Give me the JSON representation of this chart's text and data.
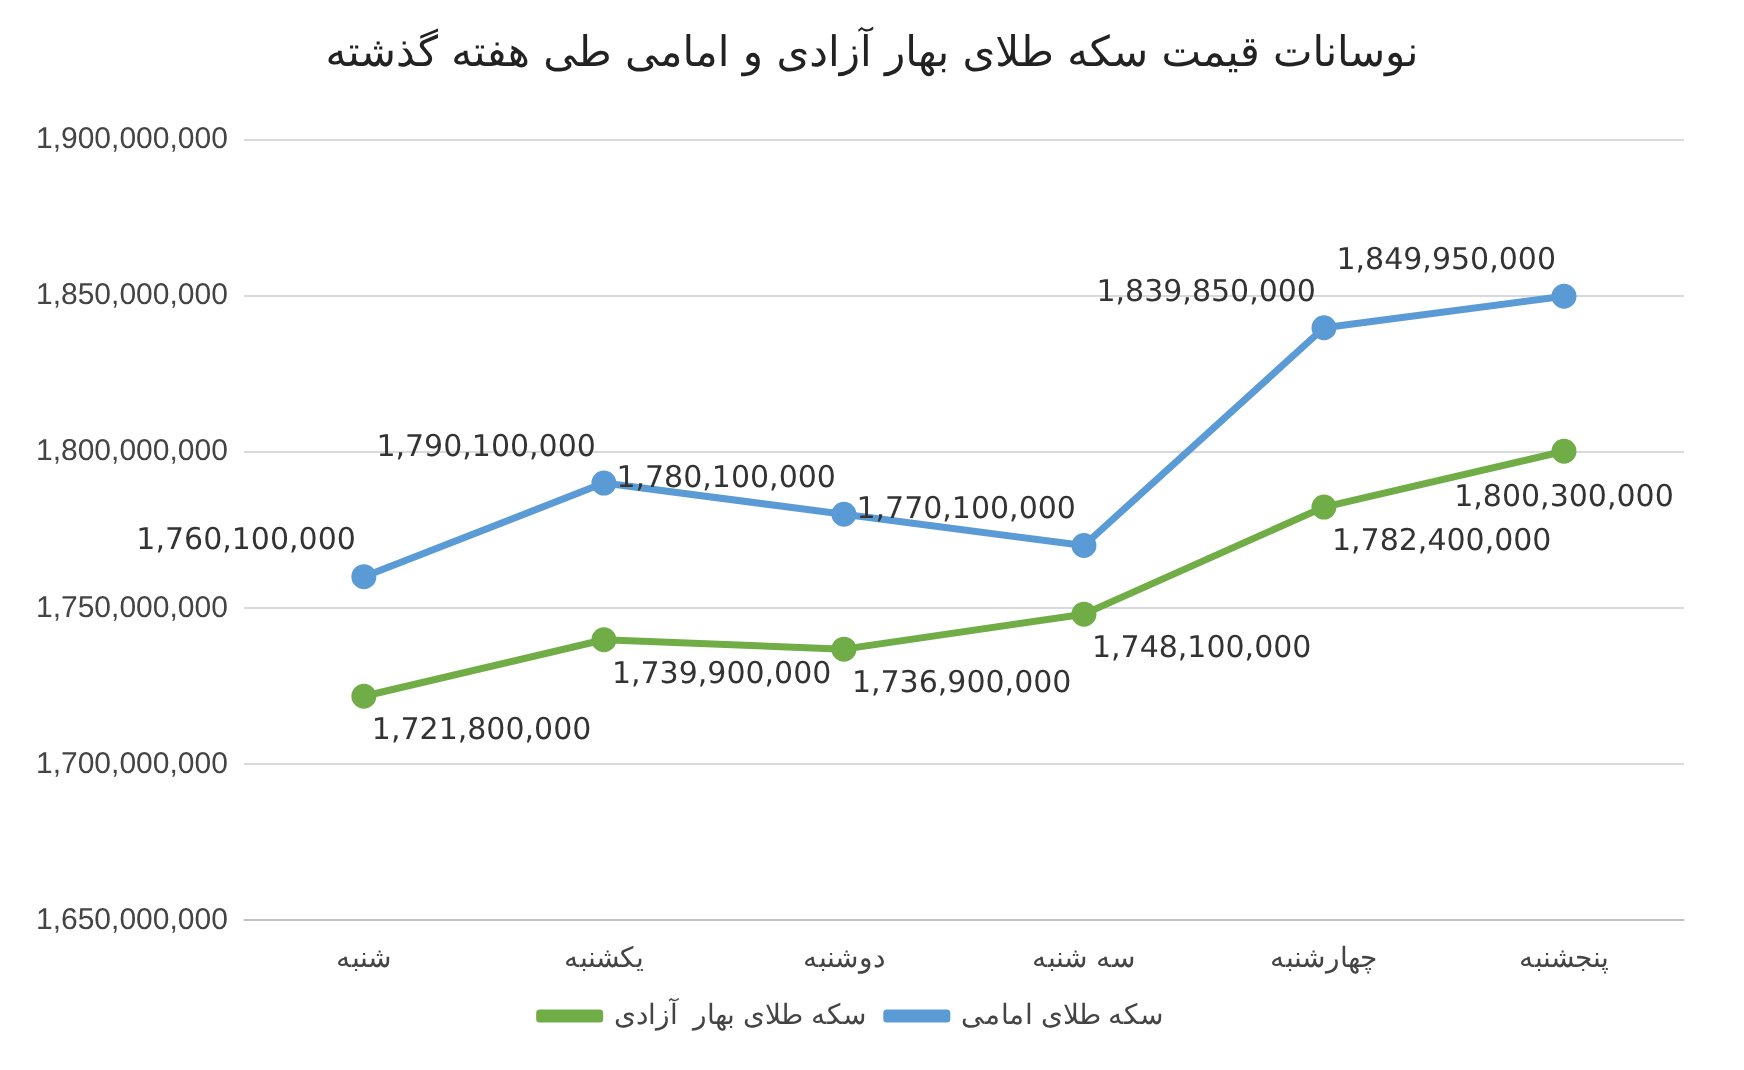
{
  "chart_data": {
    "type": "line",
    "title": "نوسانات قیمت سکه طلای بهار آزادی و امامی طی هفته گذشته",
    "categories": [
      "شنبه",
      "یکشنبه",
      "دوشنبه",
      "سه شنبه",
      "چهارشنبه",
      "پنجشنبه"
    ],
    "series": [
      {
        "name": "سکه طلای بهار  آزادی",
        "color": "#70ad47",
        "values": [
          1721800000,
          1739900000,
          1736900000,
          1748100000,
          1782400000,
          1800300000
        ],
        "value_labels": [
          "1,721,800,000",
          "1,739,900,000",
          "1,736,900,000",
          "1,748,100,000",
          "1,782,400,000",
          "1,800,300,000"
        ]
      },
      {
        "name": "سکه طلای امامی",
        "color": "#5b9bd5",
        "values": [
          1760100000,
          1790100000,
          1780100000,
          1770100000,
          1839850000,
          1849950000
        ],
        "value_labels": [
          "1,760,100,000",
          "1,790,100,000",
          "1,780,100,000",
          "1,770,100,000",
          "1,839,850,000",
          "1,849,950,000"
        ]
      }
    ],
    "ylim": [
      1650000000,
      1900000000
    ],
    "yticks": [
      {
        "value": 1650000000,
        "label": "1,650,000,000"
      },
      {
        "value": 1700000000,
        "label": "1,700,000,000"
      },
      {
        "value": 1750000000,
        "label": "1,750,000,000"
      },
      {
        "value": 1800000000,
        "label": "1,800,000,000"
      },
      {
        "value": 1850000000,
        "label": "1,850,000,000"
      },
      {
        "value": 1900000000,
        "label": "1,900,000,000"
      }
    ],
    "grid": "y",
    "legend": "bottom",
    "marker": "circle",
    "line_style": "solid"
  }
}
